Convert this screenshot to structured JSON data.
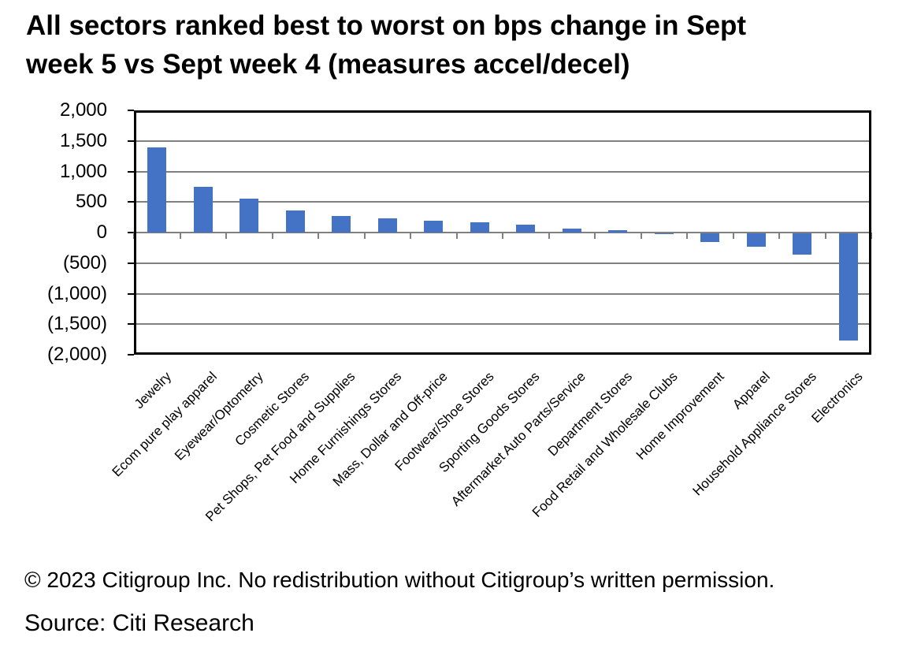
{
  "page": {
    "title_lines": [
      "All sectors ranked best to worst on bps change in Sept",
      "week 5 vs Sept week 4 (measures accel/decel)"
    ],
    "copyright": "© 2023 Citigroup Inc. No redistribution without Citigroup’s written permission.",
    "source": "Source: Citi Research"
  },
  "chart_data": {
    "type": "bar",
    "title": "All sectors ranked best to worst on bps change in Sept week 5 vs Sept week 4 (measures accel/decel)",
    "categories": [
      "Jewelry",
      "Ecom pure play apparel",
      "Eyewear/Optometry",
      "Cosmetic Stores",
      "Pet Shops, Pet Food and Supplies",
      "Home Furnishings Stores",
      "Mass, Dollar and Off-price",
      "Footwear/Shoe Stores",
      "Sporting Goods Stores",
      "Aftermarket Auto Parts/Service",
      "Department Stores",
      "Food Retail and Wholesale Clubs",
      "Home Improvement",
      "Apparel",
      "Household Appliance Stores",
      "Electronics"
    ],
    "values": [
      1400,
      750,
      560,
      360,
      270,
      230,
      195,
      170,
      135,
      70,
      35,
      -15,
      -140,
      -225,
      -350,
      -1750
    ],
    "xlabel": "",
    "ylabel": "",
    "ylim": [
      -2000,
      2000
    ],
    "ytick_step": 500,
    "ytick_labels": [
      "2,000",
      "1,500",
      "1,000",
      "500",
      "0",
      "(500)",
      "(1,000)",
      "(1,500)",
      "(2,000)"
    ],
    "legend_position": "none",
    "grid": true,
    "bar_color": "#4472C4",
    "gridline_color": "#808080",
    "border_color": "#000000"
  }
}
